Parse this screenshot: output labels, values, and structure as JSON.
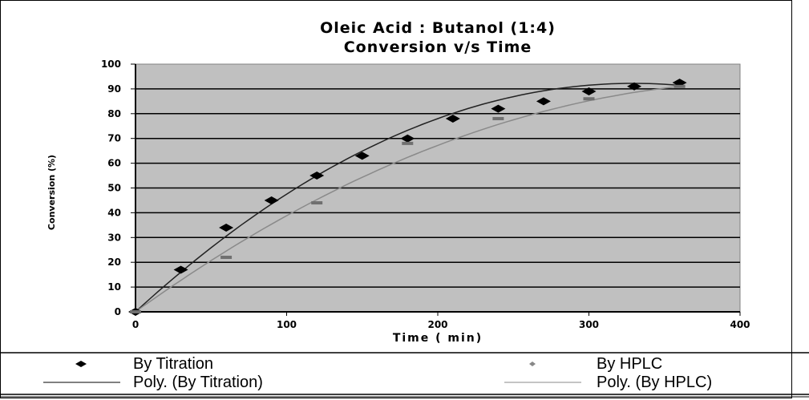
{
  "chart_data": {
    "type": "scatter",
    "title": [
      "Oleic Acid : Butanol (1:4)",
      "Conversion v/s Time"
    ],
    "xlabel": "Time ( min)",
    "ylabel": "Conversion (%)",
    "xlim": [
      0,
      400
    ],
    "ylim": [
      0,
      100
    ],
    "xticks": [
      0,
      100,
      200,
      300,
      400
    ],
    "yticks": [
      0,
      10,
      20,
      30,
      40,
      50,
      60,
      70,
      80,
      90,
      100
    ],
    "grid": "horizontal",
    "legend_position": "bottom",
    "series": [
      {
        "name": "By Titration",
        "color": "#000000",
        "x": [
          0,
          30,
          60,
          90,
          120,
          150,
          180,
          210,
          240,
          270,
          300,
          330,
          360
        ],
        "y": [
          0,
          17,
          34,
          45,
          55,
          63,
          70,
          78,
          82,
          85,
          89,
          91,
          92.5
        ]
      },
      {
        "name": "By HPLC",
        "color": "#707070",
        "x": [
          0,
          60,
          120,
          180,
          240,
          300,
          360
        ],
        "y": [
          0,
          22,
          44,
          68,
          78,
          86,
          91
        ]
      }
    ],
    "trendlines": [
      {
        "name": "Poly. (By Titration)",
        "color": "#222222",
        "type": "poly2",
        "coef": [
          0,
          0.56,
          -0.00085
        ],
        "xrange": [
          0,
          360
        ]
      },
      {
        "name": "Poly. (By HPLC)",
        "color": "#8a8a8a",
        "type": "poly2",
        "coef": [
          0,
          0.44,
          -0.00052
        ],
        "xrange": [
          0,
          360
        ]
      }
    ]
  }
}
